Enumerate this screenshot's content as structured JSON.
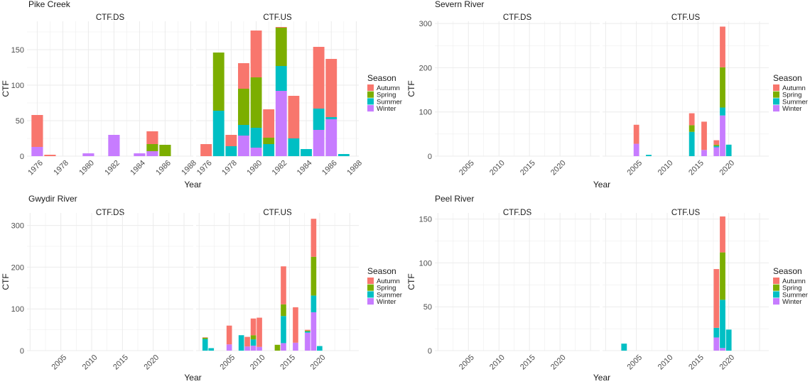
{
  "colors": {
    "Autumn": "#F8766D",
    "Spring": "#7CAE00",
    "Summer": "#00BFC4",
    "Winter": "#C77CFF",
    "grid": "#ebebeb"
  },
  "chart_data": [
    {
      "type": "bar",
      "stacked": true,
      "title": "Pike Creek",
      "facets": [
        "CTF.DS",
        "CTF.US"
      ],
      "xlabel": "Year",
      "ylabel": "CTF",
      "xlim": [
        1975.2,
        1988.2
      ],
      "ylim": [
        0,
        190
      ],
      "xticks": [
        1976,
        1978,
        1980,
        1982,
        1984,
        1986,
        1988
      ],
      "yticks": [
        0,
        50,
        100,
        150
      ],
      "xtick_rotated": true,
      "legend": {
        "title": "Season",
        "items": [
          "Autumn",
          "Spring",
          "Summer",
          "Winter"
        ],
        "position": "right"
      },
      "series": [
        "Winter",
        "Summer",
        "Spring",
        "Autumn"
      ],
      "data": {
        "CTF.DS": [
          {
            "x": 1976,
            "Winter": 13,
            "Autumn": 45
          },
          {
            "x": 1977,
            "Autumn": 2
          },
          {
            "x": 1980,
            "Winter": 4
          },
          {
            "x": 1982,
            "Winter": 30
          },
          {
            "x": 1984,
            "Winter": 4
          },
          {
            "x": 1985,
            "Winter": 7,
            "Spring": 10,
            "Autumn": 18
          },
          {
            "x": 1986,
            "Spring": 16
          }
        ],
        "CTF.US": [
          {
            "x": 1976,
            "Autumn": 17
          },
          {
            "x": 1977,
            "Summer": 64,
            "Spring": 82
          },
          {
            "x": 1978,
            "Summer": 14,
            "Autumn": 16
          },
          {
            "x": 1979,
            "Winter": 29,
            "Summer": 15,
            "Spring": 51,
            "Autumn": 36
          },
          {
            "x": 1980,
            "Winter": 12,
            "Summer": 28,
            "Spring": 71,
            "Autumn": 66
          },
          {
            "x": 1981,
            "Summer": 17,
            "Spring": 9,
            "Autumn": 40
          },
          {
            "x": 1982,
            "Winter": 92,
            "Summer": 35,
            "Spring": 54,
            "Autumn": 1
          },
          {
            "x": 1983,
            "Summer": 25,
            "Autumn": 60
          },
          {
            "x": 1984,
            "Summer": 10
          },
          {
            "x": 1985,
            "Winter": 37,
            "Summer": 30,
            "Autumn": 87
          },
          {
            "x": 1986,
            "Winter": 52,
            "Summer": 3,
            "Autumn": 82
          },
          {
            "x": 1987,
            "Summer": 3
          }
        ]
      }
    },
    {
      "type": "bar",
      "stacked": true,
      "title": "Severn River",
      "facets": [
        "CTF.DS",
        "CTF.US"
      ],
      "xlabel": "Year",
      "ylabel": "CTF",
      "xlim": [
        1999.5,
        2026.5
      ],
      "ylim": [
        0,
        305
      ],
      "xticks": [
        2005,
        2010,
        2015,
        2020
      ],
      "yticks": [
        0,
        100,
        200,
        300
      ],
      "xtick_rotated": true,
      "legend": {
        "title": "Season",
        "items": [
          "Autumn",
          "Spring",
          "Summer",
          "Winter"
        ],
        "position": "right"
      },
      "series": [
        "Winter",
        "Summer",
        "Spring",
        "Autumn"
      ],
      "data": {
        "CTF.DS": [],
        "CTF.US": [
          {
            "x": 2005,
            "Winter": 28,
            "Autumn": 43
          },
          {
            "x": 2007,
            "Summer": 3
          },
          {
            "x": 2014,
            "Summer": 55,
            "Spring": 15,
            "Autumn": 27
          },
          {
            "x": 2016,
            "Winter": 14,
            "Autumn": 64
          },
          {
            "x": 2018,
            "Winter": 20,
            "Summer": 3,
            "Spring": 3,
            "Autumn": 10
          },
          {
            "x": 2019,
            "Winter": 92,
            "Summer": 18,
            "Spring": 91,
            "Autumn": 92
          },
          {
            "x": 2020,
            "Summer": 26
          }
        ]
      }
    },
    {
      "type": "bar",
      "stacked": true,
      "title": "Gwydir River",
      "facets": [
        "CTF.DS",
        "CTF.US"
      ],
      "xlabel": "Year",
      "ylabel": "CTF",
      "xlim": [
        1999.5,
        2026.5
      ],
      "ylim": [
        0,
        330
      ],
      "xticks": [
        2005,
        2010,
        2015,
        2020
      ],
      "yticks": [
        0,
        100,
        200,
        300
      ],
      "xtick_rotated": true,
      "legend": {
        "title": "Season",
        "items": [
          "Autumn",
          "Spring",
          "Summer",
          "Winter"
        ],
        "position": "right"
      },
      "series": [
        "Winter",
        "Summer",
        "Spring",
        "Autumn"
      ],
      "data": {
        "CTF.DS": [],
        "CTF.US": [
          {
            "x": 2001,
            "Summer": 28,
            "Spring": 3,
            "Autumn": 1
          },
          {
            "x": 2002,
            "Summer": 6
          },
          {
            "x": 2005,
            "Winter": 15,
            "Autumn": 45
          },
          {
            "x": 2007,
            "Summer": 37
          },
          {
            "x": 2008,
            "Winter": 10,
            "Autumn": 23
          },
          {
            "x": 2009,
            "Winter": 12,
            "Summer": 15,
            "Spring": 10,
            "Autumn": 40
          },
          {
            "x": 2010,
            "Winter": 9,
            "Autumn": 70
          },
          {
            "x": 2013,
            "Spring": 14
          },
          {
            "x": 2014,
            "Winter": 18,
            "Summer": 65,
            "Spring": 28,
            "Autumn": 91
          },
          {
            "x": 2016,
            "Winter": 19,
            "Autumn": 85
          },
          {
            "x": 2018,
            "Winter": 43,
            "Summer": 3,
            "Spring": 2,
            "Autumn": 2
          },
          {
            "x": 2019,
            "Winter": 92,
            "Summer": 40,
            "Spring": 93,
            "Autumn": 91
          },
          {
            "x": 2020,
            "Summer": 11
          }
        ]
      }
    },
    {
      "type": "bar",
      "stacked": true,
      "title": "Peel River",
      "facets": [
        "CTF.DS",
        "CTF.US"
      ],
      "xlabel": "Year",
      "ylabel": "CTF",
      "xlim": [
        1999.5,
        2026.5
      ],
      "ylim": [
        0,
        157
      ],
      "xticks": [
        2005,
        2010,
        2015,
        2020
      ],
      "yticks": [
        0,
        50,
        100,
        150
      ],
      "xtick_rotated": true,
      "legend": {
        "title": "Season",
        "items": [
          "Autumn",
          "Spring",
          "Summer",
          "Winter"
        ],
        "position": "right"
      },
      "series": [
        "Winter",
        "Summer",
        "Spring",
        "Autumn"
      ],
      "data": {
        "CTF.DS": [],
        "CTF.US": [
          {
            "x": 2003,
            "Summer": 8
          },
          {
            "x": 2018,
            "Winter": 15,
            "Summer": 11,
            "Autumn": 67
          },
          {
            "x": 2019,
            "Winter": 3,
            "Summer": 55,
            "Spring": 54,
            "Autumn": 41
          },
          {
            "x": 2020,
            "Summer": 24
          }
        ]
      }
    }
  ]
}
